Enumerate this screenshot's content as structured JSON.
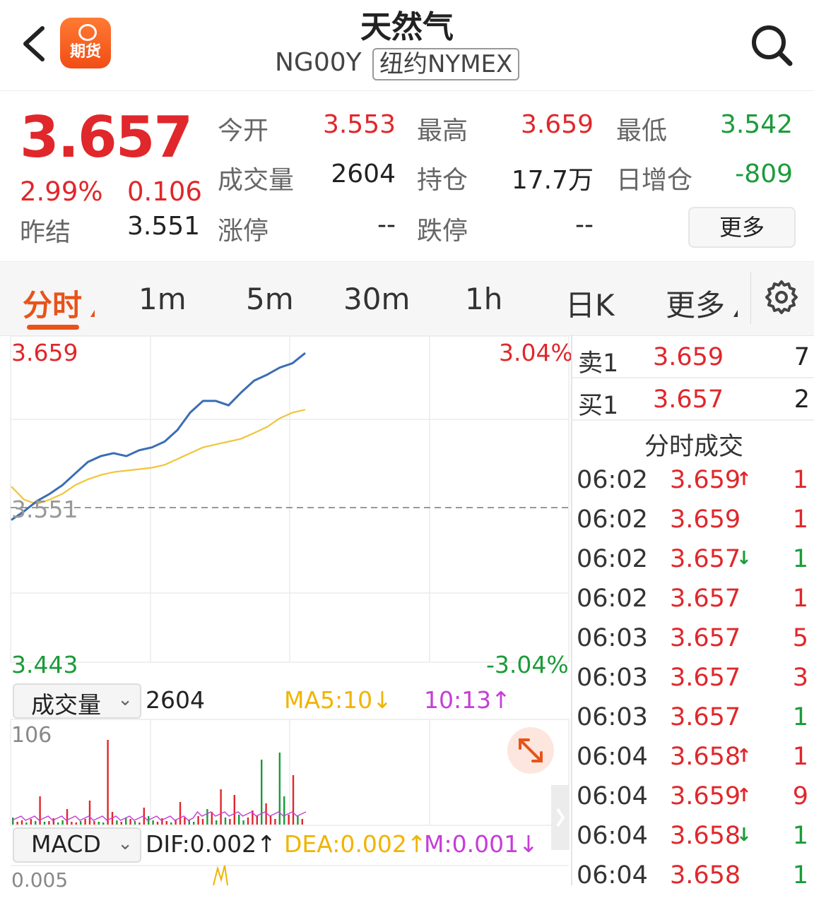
{
  "header": {
    "app_logo_text": "期货",
    "title": "天然气",
    "code": "NG00Y",
    "exchange": "纽约NYMEX"
  },
  "quote": {
    "last": "3.657",
    "change_pct": "2.99%",
    "change": "0.106",
    "prev_settle_label": "昨结",
    "prev_settle": "3.551",
    "fields": [
      {
        "label": "今开",
        "value": "3.553",
        "color": "red"
      },
      {
        "label": "最高",
        "value": "3.659",
        "color": "red"
      },
      {
        "label": "最低",
        "value": "3.542",
        "color": "green"
      },
      {
        "label": "成交量",
        "value": "2604",
        "color": "black"
      },
      {
        "label": "持仓",
        "value": "17.7万",
        "color": "black"
      },
      {
        "label": "日增仓",
        "value": "-809",
        "color": "green"
      },
      {
        "label": "涨停",
        "value": "--",
        "color": "black"
      },
      {
        "label": "跌停",
        "value": "--",
        "color": "black"
      }
    ],
    "more_button": "更多"
  },
  "tabs": [
    "分时",
    "1m",
    "5m",
    "30m",
    "1h",
    "日K",
    "更多"
  ],
  "active_tab": "分时",
  "chart": {
    "y_top": "3.659",
    "y_mid": "3.551",
    "y_bottom": "3.443",
    "pct_top": "3.04%",
    "pct_bottom": "-3.04%",
    "volume_indicator": "成交量",
    "volume_value": "2604",
    "ma5": "MA5:10↓",
    "ma10": "10:13↑",
    "volume_max": "106",
    "macd_indicator": "MACD",
    "dif": "DIF:0.002↑",
    "dea": "DEA:0.002↑",
    "m": "M:0.001↓",
    "macd_top": "0.005"
  },
  "chart_data": {
    "type": "line",
    "y_range": [
      3.443,
      3.659
    ],
    "reference": 3.551,
    "series": [
      {
        "values": [
          3.542,
          3.548,
          3.555,
          3.56,
          3.566,
          3.574,
          3.582,
          3.586,
          3.588,
          3.586,
          3.59,
          3.592,
          3.596,
          3.604,
          3.616,
          3.624,
          3.624,
          3.621,
          3.63,
          3.638,
          3.642,
          3.647,
          3.65,
          3.657
        ]
      },
      {
        "values": [
          3.565,
          3.556,
          3.553,
          3.556,
          3.56,
          3.566,
          3.57,
          3.573,
          3.575,
          3.576,
          3.577,
          3.578,
          3.58,
          3.584,
          3.588,
          3.592,
          3.594,
          3.596,
          3.598,
          3.602,
          3.606,
          3.612,
          3.616,
          3.618
        ]
      }
    ]
  },
  "book": {
    "ask_label": "卖1",
    "ask_price": "3.659",
    "ask_vol": "7",
    "bid_label": "买1",
    "bid_price": "3.657",
    "bid_vol": "2",
    "title": "分时成交",
    "trades": [
      {
        "time": "06:02",
        "price": "3.659",
        "arrow": "↑",
        "vol": "1",
        "vcolor": "red"
      },
      {
        "time": "06:02",
        "price": "3.659",
        "arrow": "",
        "vol": "1",
        "vcolor": "red"
      },
      {
        "time": "06:02",
        "price": "3.657",
        "arrow": "↓",
        "vol": "1",
        "vcolor": "green"
      },
      {
        "time": "06:02",
        "price": "3.657",
        "arrow": "",
        "vol": "1",
        "vcolor": "red"
      },
      {
        "time": "06:03",
        "price": "3.657",
        "arrow": "",
        "vol": "5",
        "vcolor": "red"
      },
      {
        "time": "06:03",
        "price": "3.657",
        "arrow": "",
        "vol": "3",
        "vcolor": "red"
      },
      {
        "time": "06:03",
        "price": "3.657",
        "arrow": "",
        "vol": "1",
        "vcolor": "green"
      },
      {
        "time": "06:04",
        "price": "3.658",
        "arrow": "↑",
        "vol": "1",
        "vcolor": "red"
      },
      {
        "time": "06:04",
        "price": "3.659",
        "arrow": "↑",
        "vol": "9",
        "vcolor": "red"
      },
      {
        "time": "06:04",
        "price": "3.658",
        "arrow": "↓",
        "vol": "1",
        "vcolor": "green"
      },
      {
        "time": "06:04",
        "price": "3.658",
        "arrow": "",
        "vol": "1",
        "vcolor": "green"
      }
    ]
  }
}
